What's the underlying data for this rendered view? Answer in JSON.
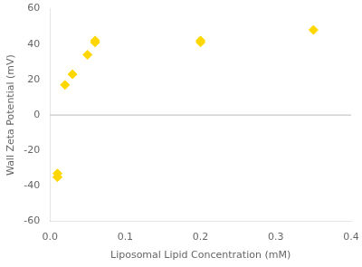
{
  "chart_data": {
    "type": "scatter",
    "x": [
      0.01,
      0.01,
      0.01,
      0.02,
      0.03,
      0.05,
      0.06,
      0.06,
      0.2,
      0.2,
      0.35
    ],
    "y": [
      -33,
      -35,
      -35,
      17,
      23,
      34,
      42,
      41,
      41,
      42,
      48
    ],
    "color": "#FFD700",
    "marker": "diamond",
    "xlabel": "Liposomal Lipid Concentration (mM)",
    "ylabel": "Wall Zeta Potential (mV)",
    "xlim": [
      0.0,
      0.4
    ],
    "ylim": [
      -60,
      60
    ],
    "xticks": [
      {
        "value": 0.0,
        "label": "0.0"
      },
      0.1,
      0.2,
      0.3,
      0.4
    ],
    "yticks": [
      -60,
      -40,
      -20,
      0,
      20,
      40,
      60
    ],
    "hline": {
      "y": 0,
      "color": "#bbbbbb"
    },
    "grid": false
  }
}
